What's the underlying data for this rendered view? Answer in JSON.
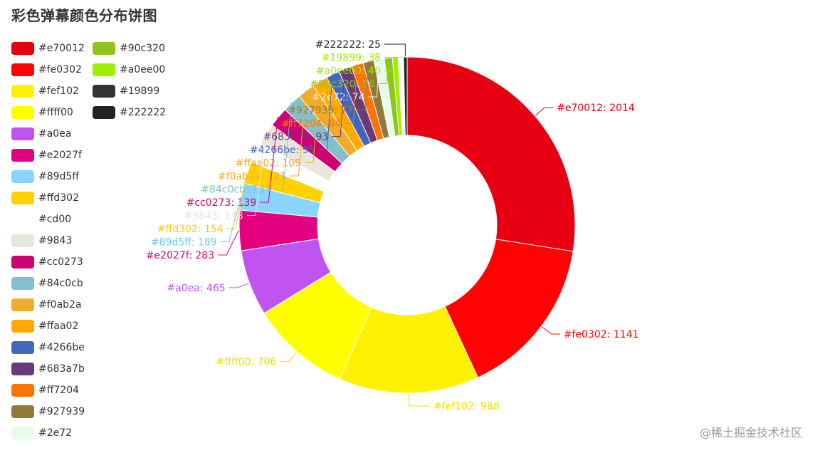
{
  "title": "彩色弹幕颜色分布饼图",
  "watermark": "@稀土掘金技术社区",
  "chart_data": {
    "type": "pie",
    "donut": true,
    "legend_position": "left",
    "series": [
      {
        "name": "#e70012",
        "value": 2014,
        "color": "#e70012"
      },
      {
        "name": "#fe0302",
        "value": 1141,
        "color": "#fe0302"
      },
      {
        "name": "#fef102",
        "value": 988,
        "color": "#fef102"
      },
      {
        "name": "#ffff00",
        "value": 706,
        "color": "#ffff00"
      },
      {
        "name": "#a0ea",
        "value": 465,
        "color": "#c054f0"
      },
      {
        "name": "#e2027f",
        "value": 283,
        "color": "#e2027f"
      },
      {
        "name": "#89d5ff",
        "value": 189,
        "color": "#89d5ff"
      },
      {
        "name": "#ffd302",
        "value": 154,
        "color": "#ffd302"
      },
      {
        "name": "#cd00",
        "value": 148,
        "color": "#ffffff"
      },
      {
        "name": "#9843",
        "value": 148,
        "color": "#eae6dc"
      },
      {
        "name": "#cc0273",
        "value": 139,
        "color": "#cc0273"
      },
      {
        "name": "#84c0cb",
        "value": 137,
        "color": "#84c0cb"
      },
      {
        "name": "#f0ab2a",
        "value": 121,
        "color": "#f0ab2a"
      },
      {
        "name": "#ffaa02",
        "value": 109,
        "color": "#ffaa02"
      },
      {
        "name": "#4266be",
        "value": 95,
        "color": "#4266be"
      },
      {
        "name": "#683a7b",
        "value": 93,
        "color": "#683a7b"
      },
      {
        "name": "#ff7204",
        "value": 84,
        "color": "#ff7204"
      },
      {
        "name": "#927939",
        "value": 77,
        "color": "#927939"
      },
      {
        "name": "#2e72",
        "value": 74,
        "color": "#e6fbeb"
      },
      {
        "name": "#90c320",
        "value": 56,
        "color": "#90c320"
      },
      {
        "name": "#a0ee00",
        "value": 40,
        "color": "#a0ee00"
      },
      {
        "name": "#19899",
        "value": 38,
        "color": "#ffffff"
      },
      {
        "name": "#222222",
        "value": 25,
        "color": "#222222"
      }
    ],
    "legend": [
      {
        "label": "#e70012",
        "color": "#e70012"
      },
      {
        "label": "#fe0302",
        "color": "#fe0302"
      },
      {
        "label": "#fef102",
        "color": "#fef102"
      },
      {
        "label": "#ffff00",
        "color": "#ffff00"
      },
      {
        "label": "#a0ea",
        "color": "#c054f0"
      },
      {
        "label": "#e2027f",
        "color": "#e2027f"
      },
      {
        "label": "#89d5ff",
        "color": "#89d5ff"
      },
      {
        "label": "#ffd302",
        "color": "#ffd302"
      },
      {
        "label": "#cd00",
        "color": "#ffffff"
      },
      {
        "label": "#9843",
        "color": "#eae6dc"
      },
      {
        "label": "#cc0273",
        "color": "#cc0273"
      },
      {
        "label": "#84c0cb",
        "color": "#84c0cb"
      },
      {
        "label": "#f0ab2a",
        "color": "#f0ab2a"
      },
      {
        "label": "#ffaa02",
        "color": "#ffaa02"
      },
      {
        "label": "#4266be",
        "color": "#4266be"
      },
      {
        "label": "#683a7b",
        "color": "#683a7b"
      },
      {
        "label": "#ff7204",
        "color": "#ff7204"
      },
      {
        "label": "#927939",
        "color": "#927939"
      },
      {
        "label": "#2e72",
        "color": "#e6fbeb"
      },
      {
        "label": "#90c320",
        "color": "#90c320"
      },
      {
        "label": "#a0ee00",
        "color": "#a0ee00"
      },
      {
        "label": "#19899",
        "color": "#333333"
      },
      {
        "label": "#222222",
        "color": "#222222"
      }
    ],
    "labels": [
      {
        "text": "#e70012: 2014",
        "color": "#e70012",
        "for": "#e70012"
      },
      {
        "text": "#fe0302: 1141",
        "color": "#fe0302",
        "for": "#fe0302"
      },
      {
        "text": "#fef102: 988",
        "color": "#f0e000",
        "for": "#fef102"
      },
      {
        "text": "#ffff00: 706",
        "color": "#e8e000",
        "for": "#ffff00"
      },
      {
        "text": "#a0ea: 465",
        "color": "#c054f0",
        "for": "#a0ea"
      },
      {
        "text": "#e2027f: 283",
        "color": "#e2027f",
        "for": "#e2027f"
      },
      {
        "text": "#89d5ff: 189",
        "color": "#6ec8f8",
        "for": "#89d5ff"
      },
      {
        "text": "#ffd302: 154",
        "color": "#ffcc00",
        "for": "#ffd302"
      },
      {
        "text": "#9843: 148",
        "color": "#e6e2da",
        "for": "#9843"
      },
      {
        "text": "#cc0273: 139",
        "color": "#cc0273",
        "for": "#cc0273"
      },
      {
        "text": "#84c0cb: 137",
        "color": "#84c0cb",
        "for": "#84c0cb"
      },
      {
        "text": "#f0ab2a: 121",
        "color": "#f0ab2a",
        "for": "#f0ab2a"
      },
      {
        "text": "#ffaa02: 109",
        "color": "#ffaa02",
        "for": "#ffaa02"
      },
      {
        "text": "#4266be: 95",
        "color": "#4266be",
        "for": "#4266be"
      },
      {
        "text": "#683a7b: 93",
        "color": "#683a7b",
        "for": "#683a7b"
      },
      {
        "text": "#ff7204: 84",
        "color": "#ff7204",
        "for": "#ff7204"
      },
      {
        "text": "#927939: 77",
        "color": "#927939",
        "for": "#927939"
      },
      {
        "text": "#2e72: 74",
        "color": "#e6fbeb",
        "for": "#2e72"
      },
      {
        "text": "#90c320: 56",
        "color": "#90c320",
        "for": "#90c320"
      },
      {
        "text": "#a0ee00: 40",
        "color": "#a0ee00",
        "for": "#a0ee00"
      },
      {
        "text": "#19899: 38",
        "color": "#a0ee00",
        "for": "#19899"
      },
      {
        "text": "#222222: 25",
        "color": "#222222",
        "for": "#222222"
      }
    ]
  }
}
